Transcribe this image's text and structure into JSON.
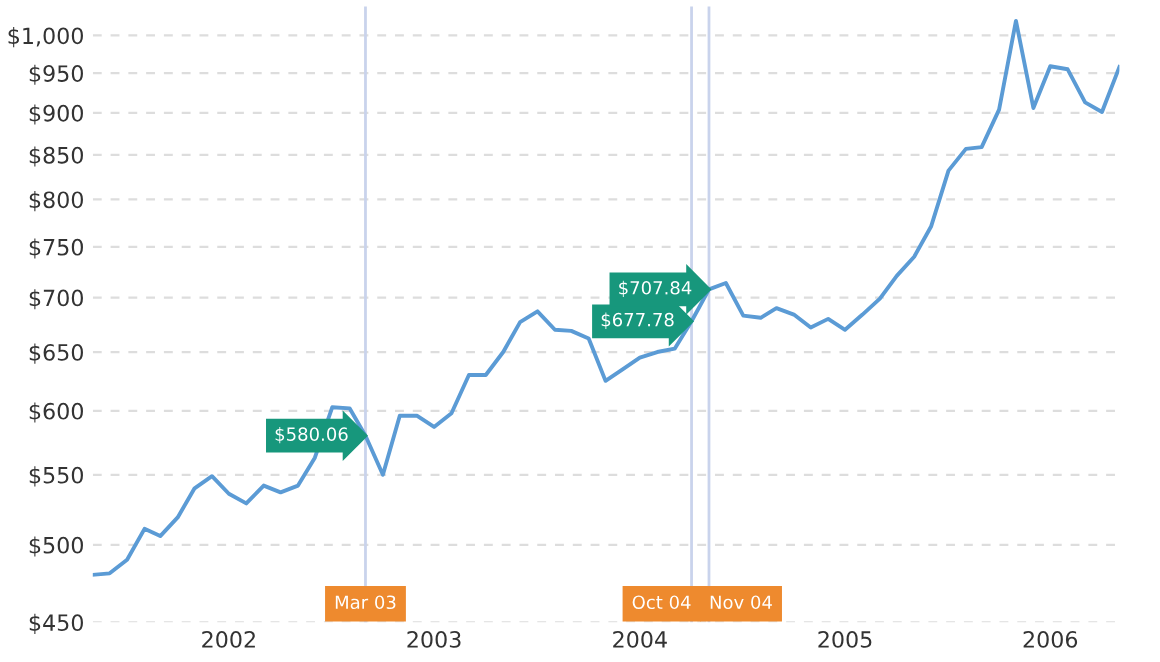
{
  "chart_data": {
    "type": "line",
    "log": "y",
    "x": [
      "2001-11",
      "2001-12",
      "2002-01",
      "2002-02",
      "2002-03",
      "2002-04",
      "2002-05",
      "2002-06",
      "2002-07",
      "2002-08",
      "2002-09",
      "2002-10",
      "2002-11",
      "2002-12",
      "2003-01",
      "2003-02",
      "2003-03",
      "2003-04",
      "2003-05",
      "2003-06",
      "2003-07",
      "2003-08",
      "2003-09",
      "2003-10",
      "2003-11",
      "2003-12",
      "2004-01",
      "2004-02",
      "2004-03",
      "2004-04",
      "2004-05",
      "2004-06",
      "2004-07",
      "2004-08",
      "2004-09",
      "2004-10",
      "2004-11",
      "2004-12",
      "2005-01",
      "2005-02",
      "2005-03",
      "2005-04",
      "2005-05",
      "2005-06",
      "2005-07",
      "2005-08",
      "2005-09",
      "2005-10",
      "2005-11",
      "2005-12",
      "2006-01",
      "2006-02",
      "2006-03",
      "2006-04",
      "2006-05",
      "2006-06",
      "2006-07",
      "2006-08",
      "2006-09",
      "2006-10",
      "2006-11"
    ],
    "series": [
      {
        "color": "#5b9bd5",
        "values": [
          480,
          481,
          490,
          511,
          506,
          519,
          540,
          549,
          536,
          529,
          542,
          537,
          542,
          563,
          603,
          602,
          580.06,
          550,
          596,
          596,
          587,
          598,
          630,
          630,
          650,
          677,
          687,
          670,
          669,
          662,
          625,
          635,
          645,
          650,
          653,
          677.78,
          707.84,
          714,
          683,
          681,
          690,
          684,
          672,
          680,
          670,
          684,
          699,
          721,
          740,
          771,
          832,
          857,
          859,
          904,
          1020,
          906,
          959,
          955,
          913,
          901,
          958
        ]
      }
    ],
    "ylim": [
      450,
      1040
    ],
    "yticks": [
      {
        "value": 450,
        "label": "$450"
      },
      {
        "value": 500,
        "label": "$500"
      },
      {
        "value": 550,
        "label": "$550"
      },
      {
        "value": 600,
        "label": "$600"
      },
      {
        "value": 650,
        "label": "$650"
      },
      {
        "value": 700,
        "label": "$700"
      },
      {
        "value": 750,
        "label": "$750"
      },
      {
        "value": 800,
        "label": "$800"
      },
      {
        "value": 850,
        "label": "$850"
      },
      {
        "value": 900,
        "label": "$900"
      },
      {
        "value": 950,
        "label": "$950"
      },
      {
        "value": 1000,
        "label": "$1,000"
      }
    ],
    "xlim": [
      "2001-11",
      "2006-11"
    ],
    "xticks": [
      {
        "value": "2002-07",
        "label": "2002"
      },
      {
        "value": "2003-07",
        "label": "2003"
      },
      {
        "value": "2004-07",
        "label": "2004"
      },
      {
        "value": "2005-07",
        "label": "2005"
      },
      {
        "value": "2006-07",
        "label": "2006"
      }
    ],
    "grid": "y",
    "marker": "none",
    "line_style": "solid",
    "ref_lines": [
      {
        "axis": "x",
        "value": "2003-03",
        "label": "Mar 03",
        "color": "#c9d3ec"
      },
      {
        "axis": "x",
        "value": "2004-10",
        "label": "Oct 04",
        "color": "#c9d3ec"
      },
      {
        "axis": "x",
        "value": "2004-11",
        "label": "Nov 04",
        "color": "#c9d3ec"
      }
    ],
    "annotations": [
      {
        "text": "$580.06",
        "x": "2003-03",
        "y": 580.06
      },
      {
        "text": "$677.78",
        "x": "2004-10",
        "y": 677.78
      },
      {
        "text": "$707.84",
        "x": "2004-11",
        "y": 707.84
      }
    ]
  }
}
